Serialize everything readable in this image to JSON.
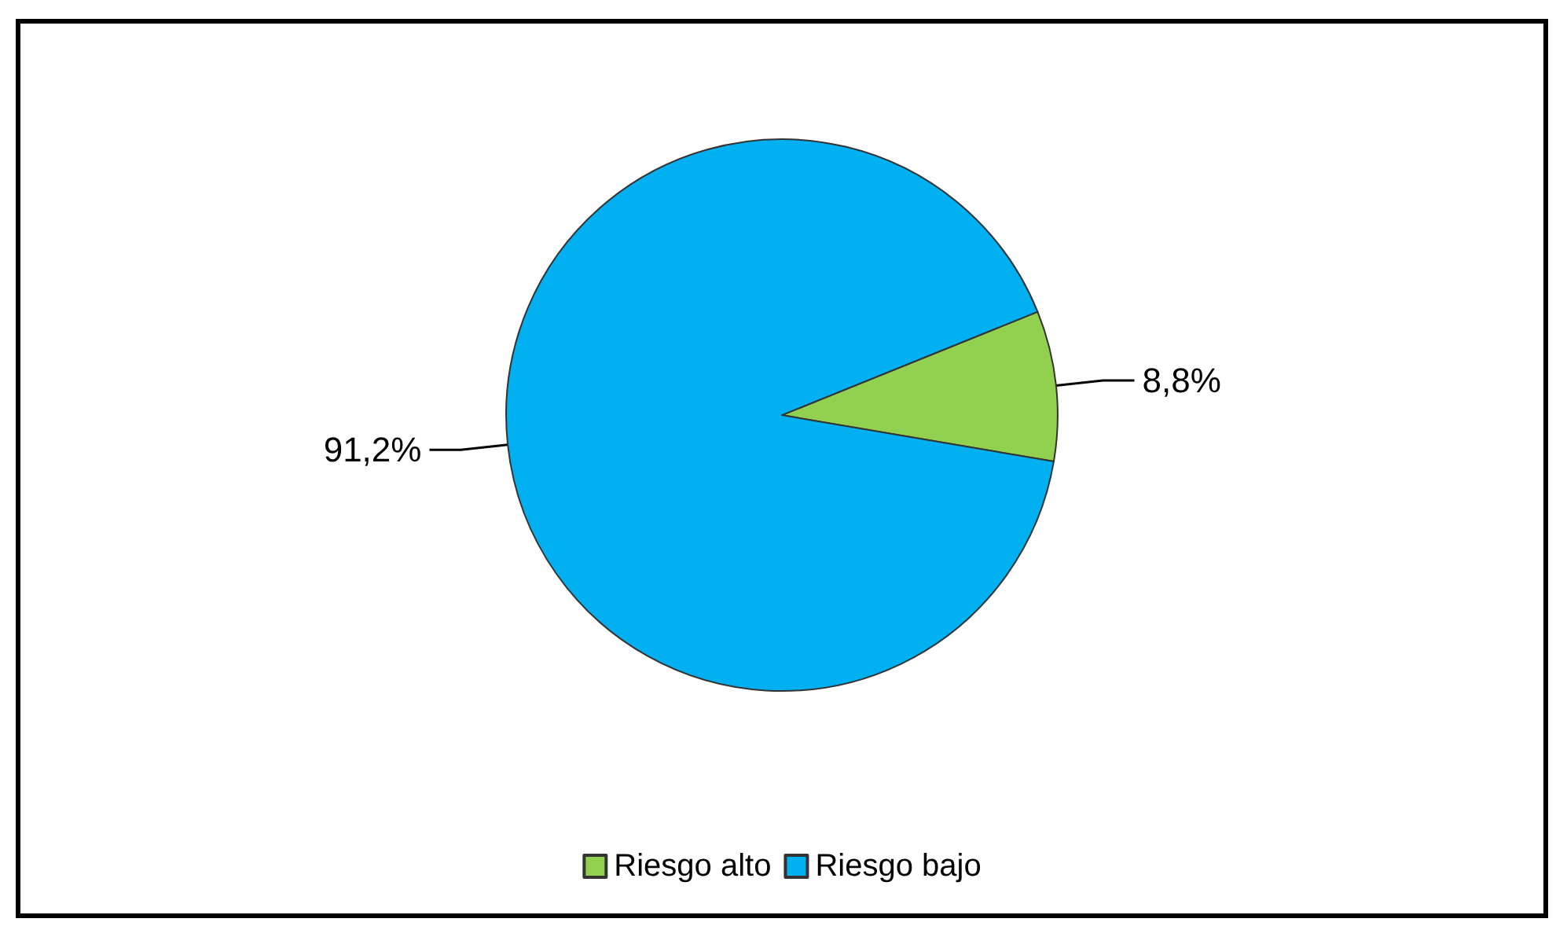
{
  "chart_data": {
    "type": "pie",
    "categories": [
      "Riesgo alto",
      "Riesgo bajo"
    ],
    "values": [
      8.8,
      91.2
    ],
    "colors": [
      "#92d050",
      "#00b0f0"
    ],
    "value_labels": [
      "8,8%",
      "91,2%"
    ],
    "legend": "bottom"
  }
}
